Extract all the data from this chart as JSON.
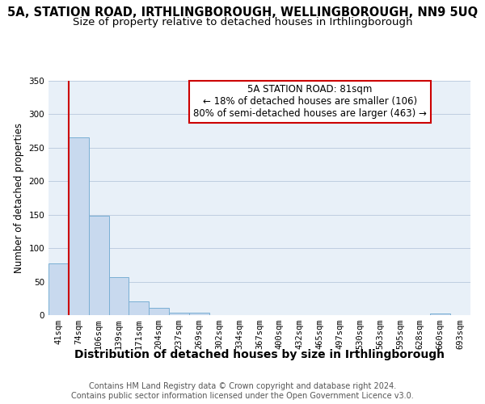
{
  "title": "5A, STATION ROAD, IRTHLINGBOROUGH, WELLINGBOROUGH, NN9 5UQ",
  "subtitle": "Size of property relative to detached houses in Irthlingborough",
  "xlabel": "Distribution of detached houses by size in Irthlingborough",
  "ylabel": "Number of detached properties",
  "bar_labels": [
    "41sqm",
    "74sqm",
    "106sqm",
    "139sqm",
    "171sqm",
    "204sqm",
    "237sqm",
    "269sqm",
    "302sqm",
    "334sqm",
    "367sqm",
    "400sqm",
    "432sqm",
    "465sqm",
    "497sqm",
    "530sqm",
    "563sqm",
    "595sqm",
    "628sqm",
    "660sqm",
    "693sqm"
  ],
  "bar_values": [
    77,
    265,
    149,
    57,
    20,
    11,
    4,
    4,
    0,
    0,
    0,
    0,
    0,
    0,
    0,
    0,
    0,
    0,
    0,
    3,
    0
  ],
  "bar_color": "#c8d9ee",
  "bar_edge_color": "#7aafd4",
  "red_line_color": "#cc0000",
  "annotation_box_edge_color": "#cc0000",
  "annotation_box_text": "5A STATION ROAD: 81sqm\n← 18% of detached houses are smaller (106)\n80% of semi-detached houses are larger (463) →",
  "ylim": [
    0,
    350
  ],
  "yticks": [
    0,
    50,
    100,
    150,
    200,
    250,
    300,
    350
  ],
  "background_color": "#ffffff",
  "plot_bg_color": "#e8f0f8",
  "grid_color": "#b8c8dc",
  "title_fontsize": 10.5,
  "subtitle_fontsize": 9.5,
  "xlabel_fontsize": 10,
  "ylabel_fontsize": 8.5,
  "tick_fontsize": 7.5,
  "annotation_fontsize": 8.5,
  "footer_fontsize": 7,
  "footer_line1": "Contains HM Land Registry data © Crown copyright and database right 2024.",
  "footer_line2": "Contains public sector information licensed under the Open Government Licence v3.0."
}
